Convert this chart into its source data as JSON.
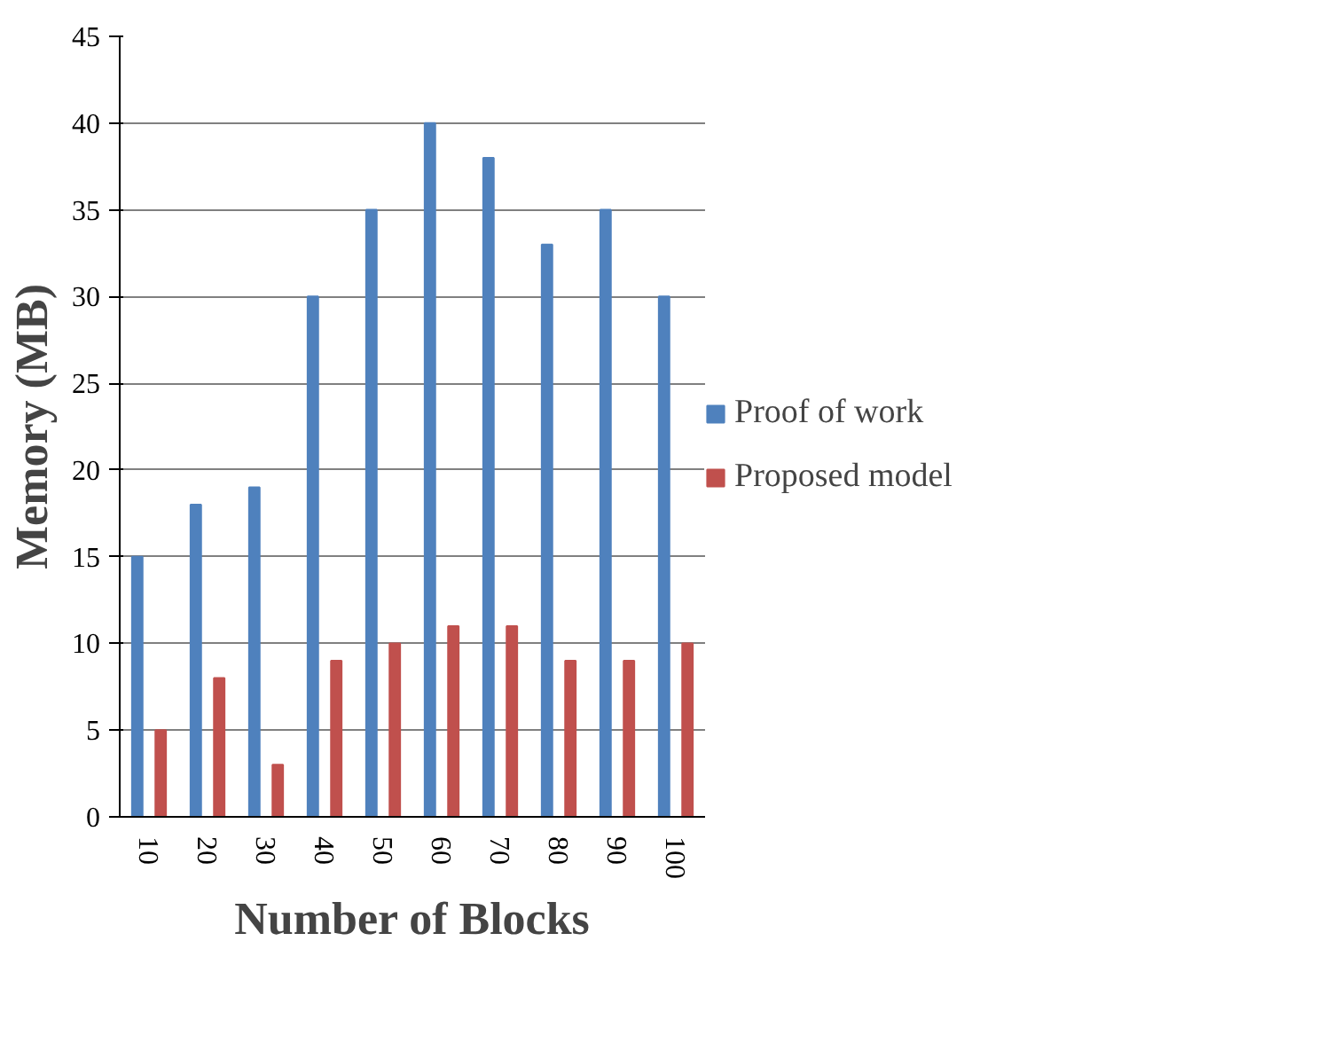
{
  "chart_data": {
    "type": "bar",
    "xlabel": "Number of Blocks",
    "ylabel": "Memory (MB)",
    "categories": [
      "10",
      "20",
      "30",
      "40",
      "50",
      "60",
      "70",
      "80",
      "90",
      "100"
    ],
    "series": [
      {
        "name": "Proof of work",
        "color": "#4f81bd",
        "values": [
          15,
          18,
          19,
          30,
          35,
          40,
          38,
          33,
          35,
          30
        ]
      },
      {
        "name": "Proposed model",
        "color": "#c0504d",
        "values": [
          5,
          8,
          3,
          9,
          10,
          11,
          11,
          9,
          9,
          10
        ]
      }
    ],
    "ylim": [
      0,
      45
    ],
    "yticks": [
      0,
      5,
      10,
      15,
      20,
      25,
      30,
      35,
      40,
      45
    ],
    "grid": "y",
    "legend": "right"
  }
}
